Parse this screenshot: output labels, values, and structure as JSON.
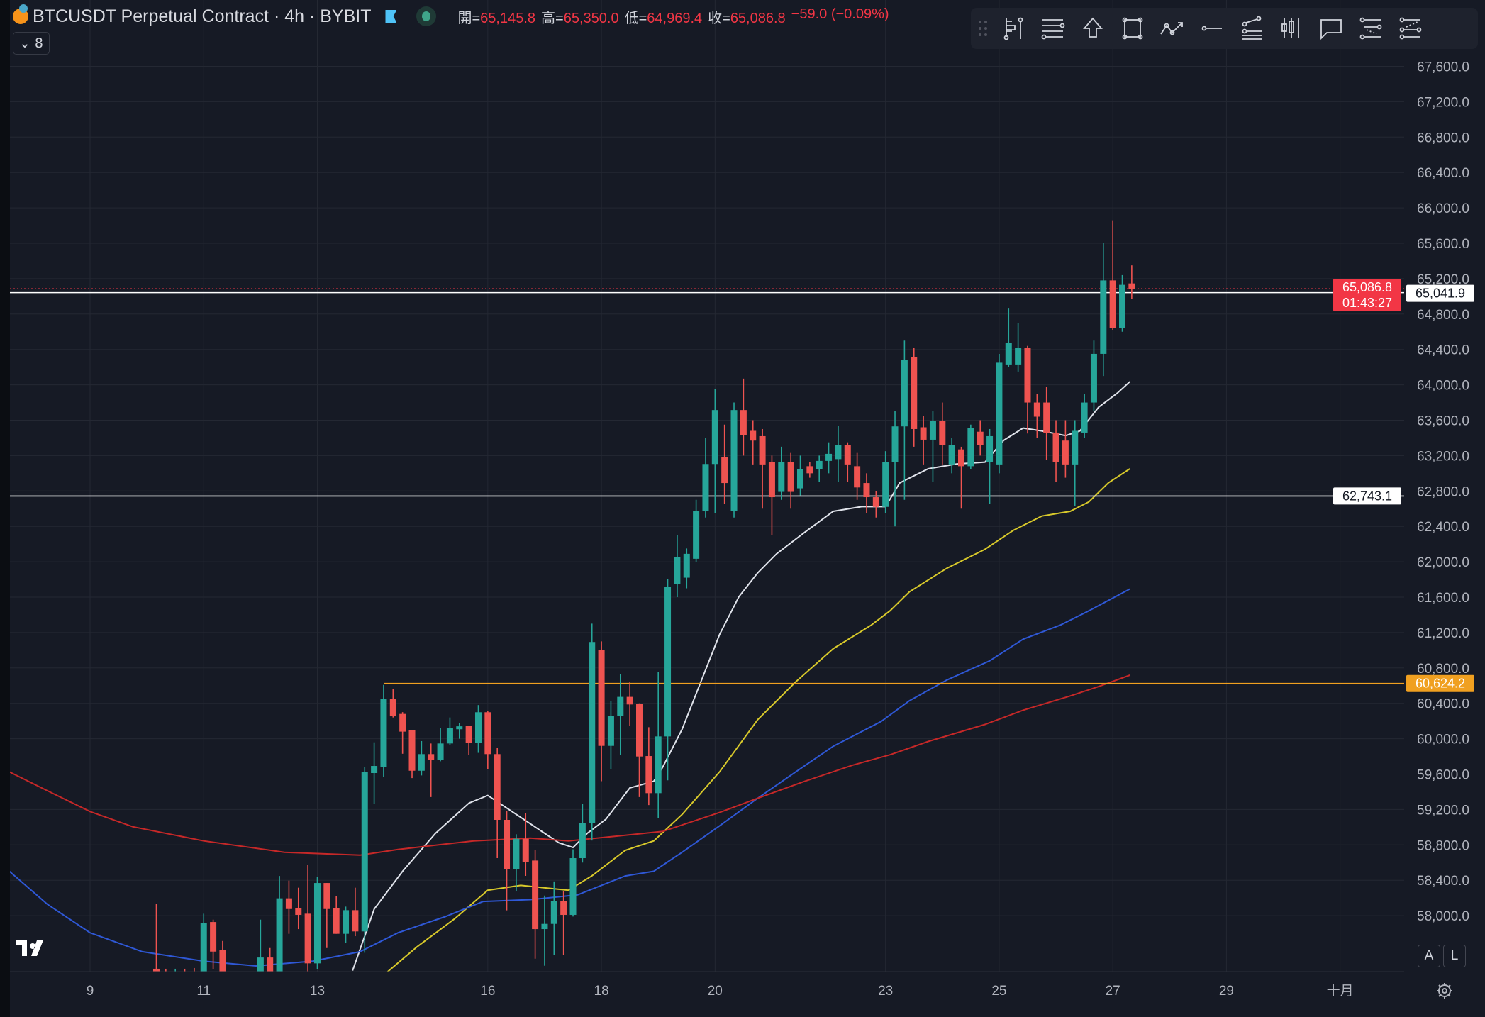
{
  "header": {
    "symbol_title": "BTCUSDT Perpetual Contract · 4h · BYBIT",
    "ohlc": [
      {
        "label": "開=",
        "value": "65,145.8"
      },
      {
        "label": "高=",
        "value": "65,350.0"
      },
      {
        "label": "低=",
        "value": "64,969.4"
      },
      {
        "label": "收=",
        "value": "65,086.8"
      }
    ],
    "change": "−59.0 (−0.09%)",
    "legend_toggle": "⌄ 8"
  },
  "toolbar": {
    "icons": [
      "fib-icon",
      "vertical-line-icon",
      "horizontal-lines-icon",
      "arrow-up-icon",
      "rectangle-icon",
      "path-icon",
      "ray-icon",
      "fib-fan-icon",
      "candles-icon",
      "callout-icon",
      "parallel-channel-icon",
      "regression-icon"
    ]
  },
  "colors": {
    "up": "#26a69a",
    "down": "#ef5350",
    "background": "#161a25",
    "grid": "#242833",
    "ma_white": "#e0e3eb",
    "ma_yellow": "#d8c92b",
    "ma_blue": "#2f58d6",
    "ma_red": "#c62828",
    "level_orange": "#f0a020"
  },
  "bottom": {
    "auto_button": "A",
    "log_button": "L",
    "logo": "TV",
    "settings_icon": "gear-icon"
  },
  "chart_data": {
    "type": "candlestick",
    "interval": "4h",
    "first_candle": "09-10 04:00",
    "ylim": [
      57368,
      68200
    ],
    "y_ticks": [
      58000,
      58400,
      58800,
      59200,
      59600,
      60000,
      60400,
      60800,
      61200,
      61600,
      62000,
      62400,
      62800,
      63200,
      63600,
      64000,
      64400,
      64800,
      65200,
      65600,
      66000,
      66400,
      66800,
      67200,
      67600
    ],
    "y_tick_labels": [
      "58,000.0",
      "58,400.0",
      "58,800.0",
      "59,200.0",
      "59,600.0",
      "60,000.0",
      "60,400.0",
      "60,800.0",
      "61,200.0",
      "61,600.0",
      "62,000.0",
      "62,400.0",
      "62,800.0",
      "63,200.0",
      "63,600.0",
      "64,000.0",
      "64,400.0",
      "64,800.0",
      "65,200.0",
      "65,600.0",
      "66,000.0",
      "66,400.0",
      "66,800.0",
      "67,200.0",
      "67,600.0"
    ],
    "x_ticks": [
      {
        "day": 9,
        "label": "9"
      },
      {
        "day": 11,
        "label": "11"
      },
      {
        "day": 13,
        "label": "13"
      },
      {
        "day": 16,
        "label": "16"
      },
      {
        "day": 18,
        "label": "18"
      },
      {
        "day": 20,
        "label": "20"
      },
      {
        "day": 23,
        "label": "23"
      },
      {
        "day": 25,
        "label": "25"
      },
      {
        "day": 27,
        "label": "27"
      },
      {
        "day": 29,
        "label": "29"
      },
      {
        "day": 31,
        "label": "十月"
      }
    ],
    "candles_ohlc": [
      [
        57400,
        58129,
        57000,
        57300
      ],
      [
        57300,
        57400,
        57000,
        57250
      ],
      [
        57250,
        57400,
        57000,
        57300
      ],
      [
        57300,
        57400,
        57000,
        57250
      ],
      [
        57350,
        57408,
        57000,
        57250
      ],
      [
        57300,
        58022,
        57100,
        57915
      ],
      [
        57928,
        57955,
        57394,
        57594
      ],
      [
        57608,
        57714,
        57100,
        57300
      ],
      [
        57250,
        57300,
        57000,
        57150
      ],
      [
        57200,
        57300,
        57000,
        57150
      ],
      [
        57200,
        57300,
        57000,
        57250
      ],
      [
        57300,
        57955,
        57100,
        57527
      ],
      [
        57527,
        57634,
        57100,
        57300
      ],
      [
        57300,
        58449,
        57100,
        58196
      ],
      [
        58196,
        58396,
        57795,
        58075
      ],
      [
        58089,
        58316,
        57848,
        58009
      ],
      [
        58022,
        58570,
        57100,
        57461
      ],
      [
        57461,
        58436,
        57394,
        58369
      ],
      [
        58369,
        58369,
        57634,
        58075
      ],
      [
        58089,
        58222,
        57795,
        57795
      ],
      [
        57795,
        58102,
        57688,
        58062
      ],
      [
        58062,
        58316,
        57768,
        57822
      ],
      [
        57822,
        59679,
        57581,
        59625
      ],
      [
        59612,
        59959,
        59264,
        59692
      ],
      [
        59679,
        60608,
        59572,
        60446
      ],
      [
        60446,
        60560,
        60240,
        60253
      ],
      [
        60280,
        60300,
        59830,
        60080
      ],
      [
        60093,
        60093,
        59555,
        59638
      ],
      [
        59638,
        59973,
        59585,
        59826
      ],
      [
        59826,
        59946,
        59340,
        59759
      ],
      [
        59759,
        60120,
        59745,
        59946
      ],
      [
        59946,
        60240,
        59930,
        60120
      ],
      [
        60107,
        60174,
        60000,
        60140
      ],
      [
        60146,
        60146,
        59820,
        59954
      ],
      [
        59954,
        60380,
        59840,
        60299
      ],
      [
        60299,
        60310,
        59660,
        59826
      ],
      [
        59826,
        59900,
        58650,
        59083
      ],
      [
        59083,
        59180,
        58060,
        58522
      ],
      [
        58522,
        58920,
        58280,
        58869
      ],
      [
        58869,
        59160,
        58450,
        58610
      ],
      [
        58623,
        58740,
        57514,
        57848
      ],
      [
        57848,
        58227,
        57434,
        57907
      ],
      [
        57907,
        58387,
        57554,
        58169
      ],
      [
        58164,
        58280,
        57554,
        58009
      ],
      [
        58009,
        58750,
        57990,
        58650
      ],
      [
        58650,
        59260,
        58600,
        59043
      ],
      [
        59043,
        61300,
        58850,
        61093
      ],
      [
        61000,
        61100,
        59520,
        59919
      ],
      [
        59919,
        60430,
        59660,
        60259
      ],
      [
        60259,
        60734,
        59819,
        60473
      ],
      [
        60473,
        60640,
        60147,
        60387
      ],
      [
        60393,
        60400,
        59340,
        59799
      ],
      [
        59804,
        60130,
        59250,
        59385
      ],
      [
        59385,
        60750,
        59100,
        60026
      ],
      [
        60026,
        61800,
        59530,
        61713
      ],
      [
        61746,
        62300,
        61600,
        62056
      ],
      [
        61820,
        62150,
        61700,
        62090
      ],
      [
        62034,
        62700,
        62000,
        62570
      ],
      [
        62570,
        63400,
        62500,
        63105
      ],
      [
        63105,
        63950,
        62550,
        63715
      ],
      [
        63180,
        63550,
        62650,
        62890
      ],
      [
        62570,
        63800,
        62500,
        63715
      ],
      [
        63715,
        64070,
        63200,
        63430
      ],
      [
        63480,
        63600,
        63100,
        63370
      ],
      [
        63420,
        63500,
        62600,
        63100
      ],
      [
        63130,
        63200,
        62300,
        62730
      ],
      [
        62790,
        63300,
        62700,
        63130
      ],
      [
        63130,
        63230,
        62600,
        62790
      ],
      [
        62830,
        63200,
        62750,
        63050
      ],
      [
        63080,
        63130,
        62950,
        63000
      ],
      [
        63050,
        63200,
        62900,
        63140
      ],
      [
        63140,
        63350,
        63000,
        63220
      ],
      [
        63160,
        63540,
        62900,
        63320
      ],
      [
        63320,
        63350,
        62900,
        63100
      ],
      [
        63080,
        63230,
        62700,
        62840
      ],
      [
        62890,
        63000,
        62550,
        62730
      ],
      [
        62730,
        62800,
        62500,
        62620
      ],
      [
        62620,
        63250,
        62550,
        63130
      ],
      [
        63130,
        63700,
        62400,
        63530
      ],
      [
        63530,
        64500,
        62700,
        64280
      ],
      [
        64310,
        64420,
        63300,
        63500
      ],
      [
        63520,
        63650,
        63100,
        63380
      ],
      [
        63380,
        63700,
        62900,
        63590
      ],
      [
        63590,
        63800,
        63100,
        63320
      ],
      [
        63100,
        63400,
        63000,
        63320
      ],
      [
        63270,
        63300,
        62600,
        63080
      ],
      [
        63080,
        63550,
        63050,
        63510
      ],
      [
        63470,
        63600,
        63200,
        63320
      ],
      [
        63130,
        63500,
        62650,
        63420
      ],
      [
        63100,
        64350,
        63000,
        64250
      ],
      [
        64230,
        64870,
        64200,
        64470
      ],
      [
        64230,
        64700,
        64150,
        64420
      ],
      [
        64420,
        64440,
        63450,
        63800
      ],
      [
        63800,
        63900,
        63400,
        63640
      ],
      [
        63800,
        63980,
        63150,
        63460
      ],
      [
        63460,
        63600,
        62900,
        63130
      ],
      [
        63370,
        63600,
        62950,
        63100
      ],
      [
        63100,
        63600,
        62630,
        63480
      ],
      [
        63460,
        63900,
        63400,
        63800
      ],
      [
        63800,
        64500,
        63700,
        64350
      ],
      [
        64350,
        65600,
        64100,
        65180
      ],
      [
        65180,
        65860,
        64620,
        64640
      ],
      [
        64640,
        65240,
        64600,
        65130
      ],
      [
        65145.8,
        65350,
        64969.4,
        65086.8
      ]
    ],
    "moving_averages": [
      {
        "color": "#e0e3eb",
        "points": [
          [
            13.62,
            57379
          ],
          [
            14.0,
            58074
          ],
          [
            14.5,
            58502
          ],
          [
            15.08,
            58931
          ],
          [
            15.67,
            59273
          ],
          [
            16.0,
            59359
          ],
          [
            16.25,
            59252
          ],
          [
            16.75,
            59038
          ],
          [
            17.25,
            58824
          ],
          [
            17.5,
            58770
          ],
          [
            17.75,
            58931
          ],
          [
            18.08,
            59091
          ],
          [
            18.5,
            59444
          ],
          [
            18.92,
            59519
          ],
          [
            19.08,
            59680
          ],
          [
            19.42,
            60108
          ],
          [
            19.75,
            60643
          ],
          [
            20.08,
            61178
          ],
          [
            20.42,
            61606
          ],
          [
            20.75,
            61874
          ],
          [
            21.08,
            62088
          ],
          [
            21.58,
            62334
          ],
          [
            22.08,
            62570
          ],
          [
            22.58,
            62623
          ],
          [
            23.0,
            62623
          ],
          [
            23.25,
            62891
          ],
          [
            23.75,
            63051
          ],
          [
            24.25,
            63105
          ],
          [
            24.75,
            63126
          ],
          [
            25.08,
            63372
          ],
          [
            25.42,
            63511
          ],
          [
            25.75,
            63479
          ],
          [
            26.17,
            63426
          ],
          [
            26.42,
            63479
          ],
          [
            26.75,
            63747
          ],
          [
            27.08,
            63907
          ],
          [
            27.3,
            64036
          ]
        ]
      },
      {
        "color": "#d8c92b",
        "points": [
          [
            14.22,
            57357
          ],
          [
            14.75,
            57646
          ],
          [
            15.42,
            57967
          ],
          [
            16.0,
            58288
          ],
          [
            16.58,
            58342
          ],
          [
            17.42,
            58288
          ],
          [
            17.83,
            58449
          ],
          [
            18.42,
            58738
          ],
          [
            18.92,
            58845
          ],
          [
            19.42,
            59145
          ],
          [
            20.08,
            59626
          ],
          [
            20.75,
            60215
          ],
          [
            21.42,
            60643
          ],
          [
            22.08,
            61018
          ],
          [
            22.75,
            61285
          ],
          [
            23.08,
            61446
          ],
          [
            23.42,
            61660
          ],
          [
            24.08,
            61927
          ],
          [
            24.75,
            62141
          ],
          [
            25.25,
            62356
          ],
          [
            25.75,
            62516
          ],
          [
            26.25,
            62570
          ],
          [
            26.58,
            62677
          ],
          [
            26.92,
            62891
          ],
          [
            27.3,
            63051
          ]
        ]
      },
      {
        "color": "#2f58d6",
        "points": [
          [
            7.58,
            58502
          ],
          [
            8.25,
            58128
          ],
          [
            9.0,
            57807
          ],
          [
            9.92,
            57593
          ],
          [
            11.0,
            57486
          ],
          [
            11.92,
            57432
          ],
          [
            12.92,
            57486
          ],
          [
            13.75,
            57593
          ],
          [
            14.42,
            57807
          ],
          [
            15.25,
            57989
          ],
          [
            15.92,
            58160
          ],
          [
            16.75,
            58181
          ],
          [
            17.58,
            58235
          ],
          [
            18.42,
            58449
          ],
          [
            18.92,
            58502
          ],
          [
            19.42,
            58717
          ],
          [
            20.08,
            59016
          ],
          [
            20.75,
            59327
          ],
          [
            21.42,
            59626
          ],
          [
            22.08,
            59915
          ],
          [
            22.92,
            60194
          ],
          [
            23.42,
            60429
          ],
          [
            24.08,
            60664
          ],
          [
            24.83,
            60879
          ],
          [
            25.42,
            61125
          ],
          [
            26.08,
            61285
          ],
          [
            26.58,
            61446
          ],
          [
            27.3,
            61692
          ]
        ]
      },
      {
        "color": "#c62828",
        "points": [
          [
            7.58,
            59626
          ],
          [
            8.25,
            59412
          ],
          [
            9.0,
            59177
          ],
          [
            9.75,
            59005
          ],
          [
            11.0,
            58845
          ],
          [
            12.42,
            58717
          ],
          [
            13.75,
            58684
          ],
          [
            14.42,
            58749
          ],
          [
            15.75,
            58845
          ],
          [
            16.75,
            58877
          ],
          [
            17.42,
            58845
          ],
          [
            18.25,
            58898
          ],
          [
            19.08,
            58952
          ],
          [
            20.08,
            59166
          ],
          [
            20.75,
            59327
          ],
          [
            21.58,
            59519
          ],
          [
            22.42,
            59701
          ],
          [
            23.08,
            59819
          ],
          [
            23.75,
            59969
          ],
          [
            24.75,
            60161
          ],
          [
            25.42,
            60322
          ],
          [
            26.25,
            60483
          ],
          [
            26.75,
            60589
          ],
          [
            27.3,
            60718
          ]
        ]
      }
    ],
    "horizontal_lines": [
      {
        "price": 65041.9,
        "label": "65,041.9",
        "color": "#ffffff",
        "label_bg": "#ffffff",
        "label_fg": "#131722"
      },
      {
        "price": 62743.1,
        "label": "62,743.1",
        "color": "#ffffff",
        "label_bg": "#ffffff",
        "label_fg": "#131722"
      },
      {
        "price": 60624.2,
        "label": "60,624.2",
        "color": "#f0a020",
        "label_bg": "#f0a020",
        "label_fg": "#ffffff",
        "from_day": 14.17
      }
    ],
    "last_price": {
      "price": 65086.8,
      "label": "65,086.8",
      "countdown": "01:43:27",
      "color": "#f23645"
    }
  }
}
